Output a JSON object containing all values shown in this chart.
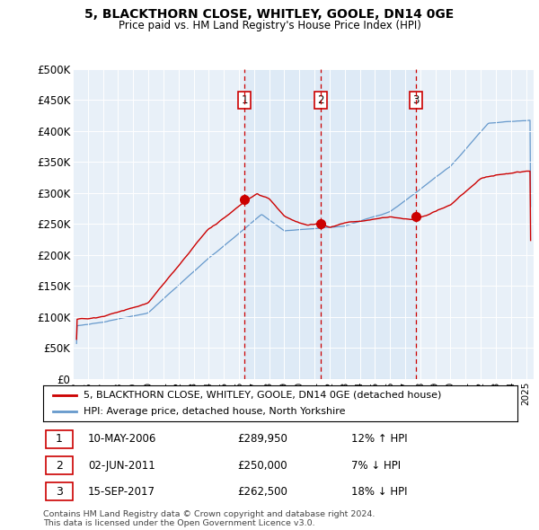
{
  "title": "5, BLACKTHORN CLOSE, WHITLEY, GOOLE, DN14 0GE",
  "subtitle": "Price paid vs. HM Land Registry's House Price Index (HPI)",
  "ylabel_ticks": [
    "£0",
    "£50K",
    "£100K",
    "£150K",
    "£200K",
    "£250K",
    "£300K",
    "£350K",
    "£400K",
    "£450K",
    "£500K"
  ],
  "ytick_values": [
    0,
    50000,
    100000,
    150000,
    200000,
    250000,
    300000,
    350000,
    400000,
    450000,
    500000
  ],
  "ylim": [
    0,
    500000
  ],
  "xlim_start": 1995.25,
  "xlim_end": 2025.5,
  "transactions": [
    {
      "date_num": 2006.36,
      "price": 289950,
      "label": "1"
    },
    {
      "date_num": 2011.42,
      "price": 250000,
      "label": "2"
    },
    {
      "date_num": 2017.71,
      "price": 262500,
      "label": "3"
    }
  ],
  "transaction_table": [
    {
      "num": "1",
      "date": "10-MAY-2006",
      "price": "£289,950",
      "hpi": "12% ↑ HPI"
    },
    {
      "num": "2",
      "date": "02-JUN-2011",
      "price": "£250,000",
      "hpi": "7% ↓ HPI"
    },
    {
      "num": "3",
      "date": "15-SEP-2017",
      "price": "£262,500",
      "hpi": "18% ↓ HPI"
    }
  ],
  "legend_entries": [
    "5, BLACKTHORN CLOSE, WHITLEY, GOOLE, DN14 0GE (detached house)",
    "HPI: Average price, detached house, North Yorkshire"
  ],
  "footer": "Contains HM Land Registry data © Crown copyright and database right 2024.\nThis data is licensed under the Open Government Licence v3.0.",
  "house_color": "#cc0000",
  "hpi_color": "#6699cc",
  "plot_bg": "#e8f0f8"
}
